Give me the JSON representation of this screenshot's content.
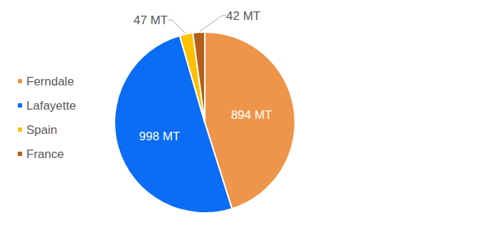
{
  "chart_data": {
    "type": "pie",
    "categories": [
      "Ferndale",
      "Lafayette",
      "Spain",
      "France"
    ],
    "values": [
      894,
      998,
      47,
      42
    ],
    "value_labels": [
      "894 MT",
      "998 MT",
      "47 MT",
      "42 MT"
    ],
    "colors": [
      "#EE9549",
      "#0B6CF6",
      "#FFC000",
      "#B5601A"
    ],
    "data_labels": true,
    "legend": "left"
  }
}
